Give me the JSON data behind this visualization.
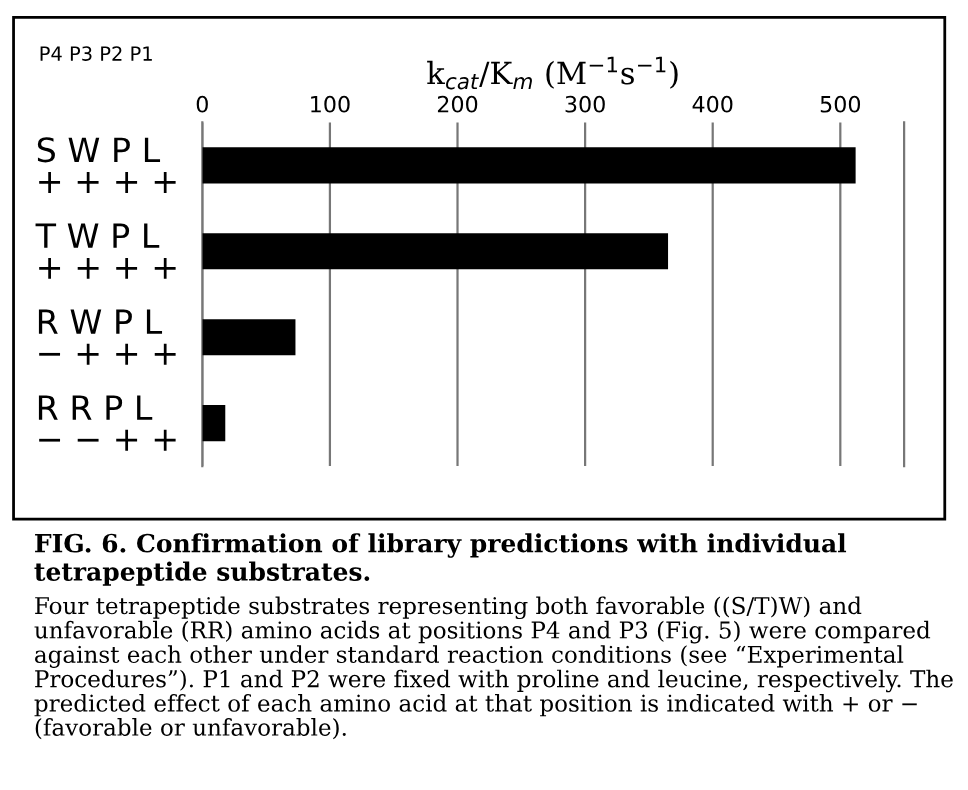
{
  "chart_data": {
    "type": "bar",
    "orientation": "horizontal",
    "xlabel": "k$_{cat}$/K$_{m}$ (M$^{−1}$s$^{−1}$)",
    "categories": [
      "S W P L\n+ + + +",
      "T W P L\n+ + + +",
      "R W P L\n− + + +",
      "R R P L\n− − + +"
    ],
    "values": [
      512,
      365,
      73,
      18
    ],
    "color": "#000000",
    "xlim": [
      0,
      550
    ],
    "xticks": [
      0,
      100,
      200,
      300,
      400,
      500
    ],
    "grid": "x",
    "title": "FIG. 6. Confirmation of library predictions with individual tetrapeptide substrates.",
    "annotations": [
      "P4 P3 P2 P1",
      "Four tetrapeptide substrates representing both favorable ((S/T)W) and unfavorable (RR) amino acids at positions P4 and P3 (Fig. 5) were compared against each other under standard reaction conditions (see “Experimental Procedures”). P1 and P2 were fixed with proline and leucine, respectively. The predicted effect of each amino acid at that position is indicated with + or − (favorable or unfavorable)."
    ]
  }
}
